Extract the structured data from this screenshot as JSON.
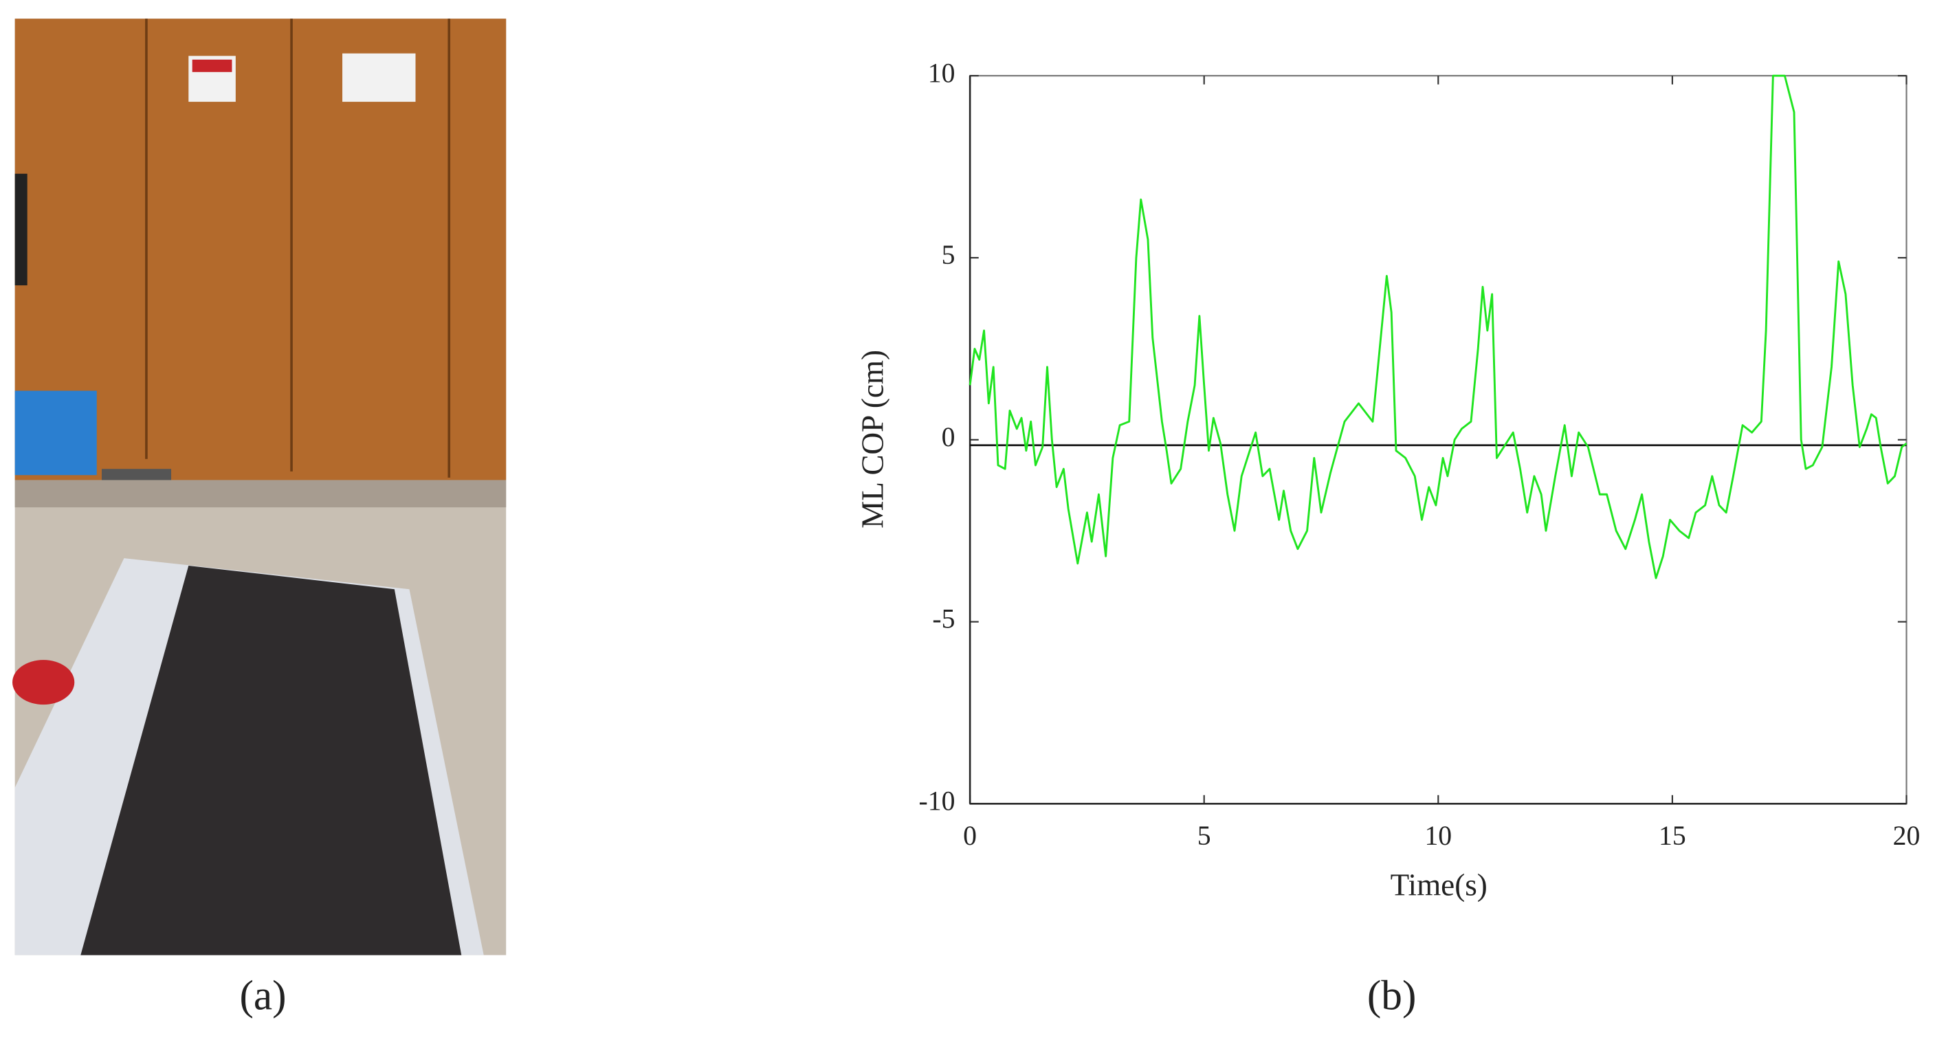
{
  "panel_labels": [
    "(a)",
    "(b)"
  ],
  "chart_data": {
    "type": "line",
    "xlabel": "Time(s)",
    "ylabel": "ML COP (cm)",
    "xlim": [
      0,
      20
    ],
    "ylim": [
      -10,
      10
    ],
    "xticks": [
      0,
      5,
      10,
      15,
      20
    ],
    "yticks": [
      -10,
      -5,
      0,
      5,
      10
    ],
    "reference_line": -0.15,
    "series": [
      {
        "color": "#1fe41f",
        "x": [
          0,
          0.1,
          0.2,
          0.3,
          0.4,
          0.5,
          0.6,
          0.75,
          0.85,
          1.0,
          1.1,
          1.2,
          1.3,
          1.4,
          1.55,
          1.65,
          1.75,
          1.85,
          2.0,
          2.1,
          2.3,
          2.5,
          2.6,
          2.75,
          2.9,
          3.05,
          3.2,
          3.4,
          3.55,
          3.65,
          3.8,
          3.9,
          4.1,
          4.2,
          4.3,
          4.5,
          4.65,
          4.8,
          4.9,
          5.0,
          5.1,
          5.2,
          5.35,
          5.5,
          5.65,
          5.8,
          6.0,
          6.1,
          6.25,
          6.4,
          6.6,
          6.7,
          6.85,
          7.0,
          7.2,
          7.35,
          7.5,
          7.7,
          7.85,
          8.0,
          8.3,
          8.6,
          8.75,
          8.9,
          9.0,
          9.1,
          9.3,
          9.5,
          9.65,
          9.8,
          9.95,
          10.1,
          10.2,
          10.35,
          10.5,
          10.7,
          10.85,
          10.95,
          11.05,
          11.15,
          11.25,
          11.4,
          11.6,
          11.75,
          11.9,
          12.05,
          12.2,
          12.3,
          12.5,
          12.7,
          12.85,
          13.0,
          13.2,
          13.45,
          13.6,
          13.8,
          14.0,
          14.2,
          14.35,
          14.5,
          14.65,
          14.8,
          14.95,
          15.15,
          15.35,
          15.5,
          15.7,
          15.85,
          16.0,
          16.15,
          16.3,
          16.5,
          16.7,
          16.9,
          17.0,
          17.15,
          17.4,
          17.6,
          17.75,
          17.85,
          18.0,
          18.2,
          18.4,
          18.55,
          18.7,
          18.85,
          19.0,
          19.15,
          19.25,
          19.35,
          19.45,
          19.6,
          19.75,
          19.9,
          20
        ],
        "values": [
          1.5,
          2.5,
          2.2,
          3.0,
          1.0,
          2.0,
          -0.7,
          -0.8,
          0.8,
          0.3,
          0.6,
          -0.3,
          0.5,
          -0.7,
          -0.2,
          2.0,
          0.0,
          -1.3,
          -0.8,
          -1.9,
          -3.4,
          -2.0,
          -2.8,
          -1.5,
          -3.2,
          -0.5,
          0.4,
          0.5,
          5.0,
          6.6,
          5.5,
          2.8,
          0.5,
          -0.3,
          -1.2,
          -0.8,
          0.5,
          1.5,
          3.4,
          1.5,
          -0.3,
          0.6,
          -0.1,
          -1.5,
          -2.5,
          -1.0,
          -0.2,
          0.2,
          -1.0,
          -0.8,
          -2.2,
          -1.4,
          -2.5,
          -3.0,
          -2.5,
          -0.5,
          -2.0,
          -0.9,
          -0.2,
          0.5,
          1.0,
          0.5,
          2.5,
          4.5,
          3.5,
          -0.3,
          -0.5,
          -1.0,
          -2.2,
          -1.3,
          -1.8,
          -0.5,
          -1.0,
          0.0,
          0.3,
          0.5,
          2.5,
          4.2,
          3.0,
          4.0,
          -0.5,
          -0.2,
          0.2,
          -0.8,
          -2.0,
          -1.0,
          -1.5,
          -2.5,
          -1.0,
          0.4,
          -1.0,
          0.2,
          -0.2,
          -1.5,
          -1.5,
          -2.5,
          -3.0,
          -2.2,
          -1.5,
          -2.8,
          -3.8,
          -3.2,
          -2.2,
          -2.5,
          -2.7,
          -2.0,
          -1.8,
          -1.0,
          -1.8,
          -2.0,
          -1.0,
          0.4,
          0.2,
          0.5,
          3.0,
          10,
          10,
          9.0,
          0.0,
          -0.8,
          -0.7,
          -0.2,
          2.0,
          4.9,
          4.0,
          1.5,
          -0.2,
          0.3,
          0.7,
          0.6,
          -0.2,
          -1.2,
          -1.0,
          -0.2,
          -0.1
        ]
      }
    ]
  }
}
